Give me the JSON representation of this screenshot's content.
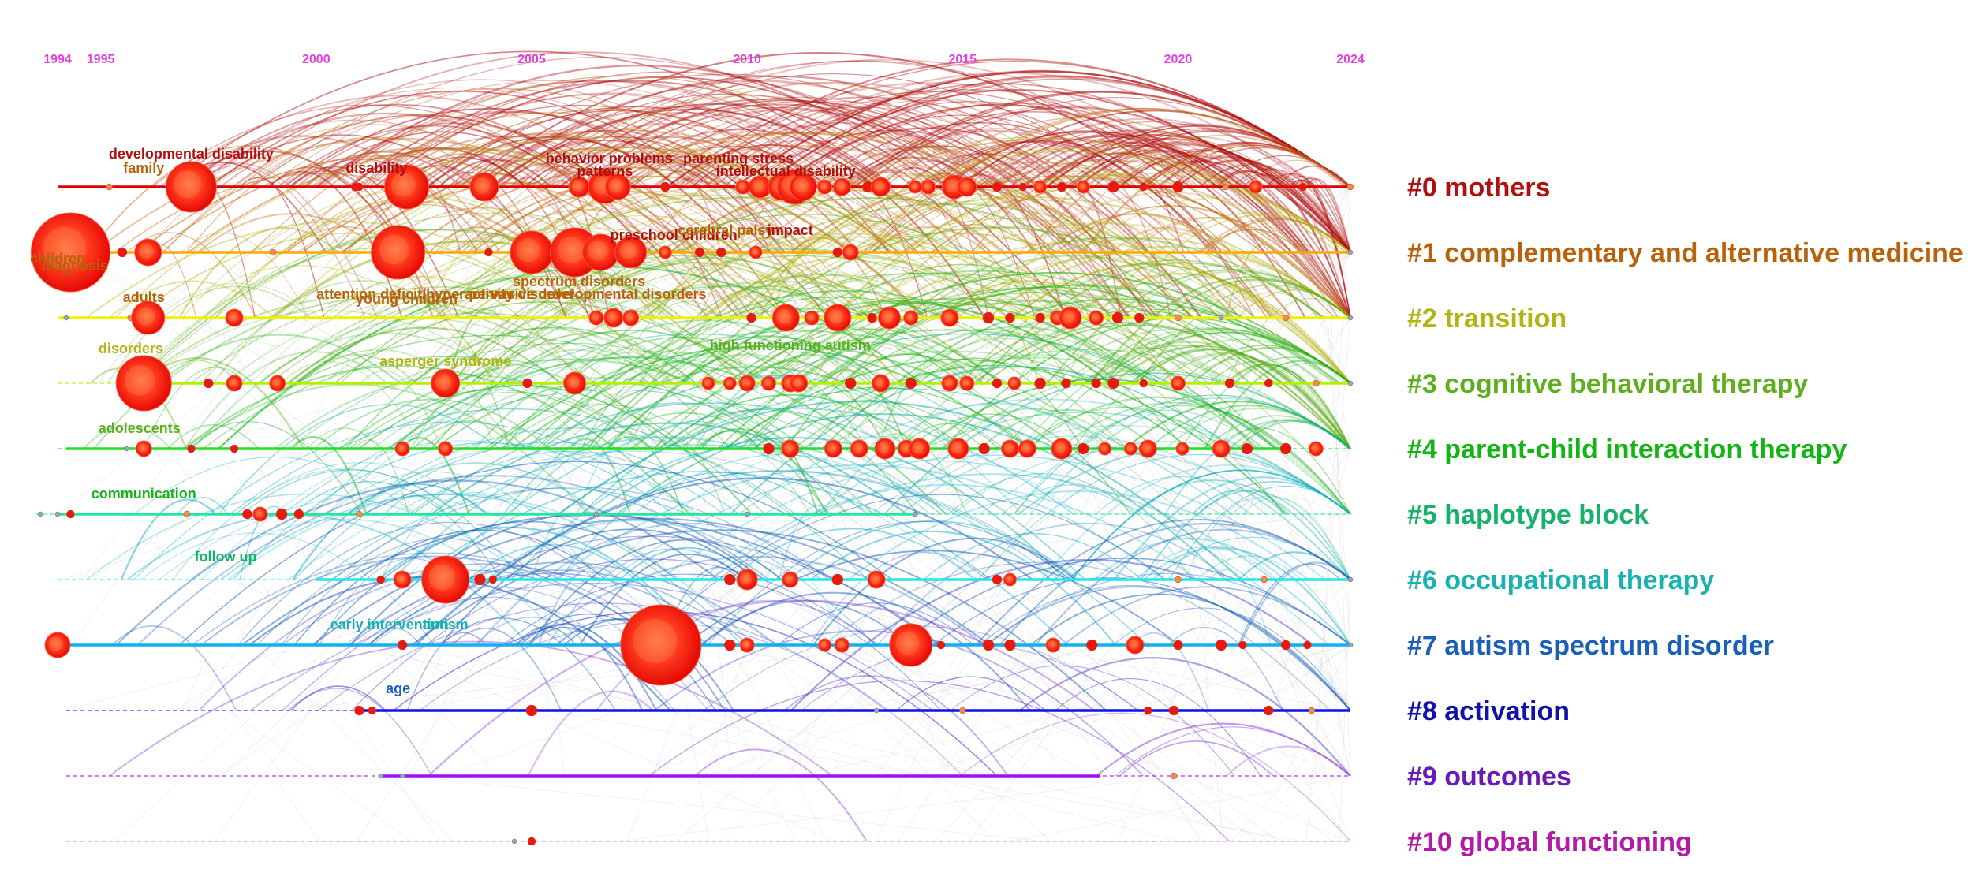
{
  "timeline": {
    "years": [
      "1994",
      "1995",
      "2000",
      "2005",
      "2010",
      "2015",
      "2020",
      "2024"
    ],
    "year_values": [
      1994,
      1995,
      2000,
      2005,
      2010,
      2015,
      2020,
      2024
    ]
  },
  "clusters": [
    {
      "label": "#0 mothers",
      "color": "#b01010"
    },
    {
      "label": "#1 complementary and alternative medicine",
      "color": "#b8620c"
    },
    {
      "label": "#2 transition",
      "color": "#b2b412"
    },
    {
      "label": "#3 cognitive behavioral therapy",
      "color": "#5fae1e"
    },
    {
      "label": "#4 parent-child interaction therapy",
      "color": "#14b414"
    },
    {
      "label": "#5 haplotype block",
      "color": "#16b26a"
    },
    {
      "label": "#6 occupational therapy",
      "color": "#18b2b2"
    },
    {
      "label": "#7 autism spectrum disorder",
      "color": "#1a5fb8"
    },
    {
      "label": "#8 activation",
      "color": "#1212a8"
    },
    {
      "label": "#9 outcomes",
      "color": "#6a1ab8"
    },
    {
      "label": "#10 global functioning",
      "color": "#b41aa8"
    }
  ],
  "line_colors": [
    "#e00000",
    "#ffa800",
    "#f0f000",
    "#b4f000",
    "#20e020",
    "#20e8a0",
    "#20e8f0",
    "#10b0f0",
    "#1010f0",
    "#a010f0",
    "#f070e0"
  ],
  "keywords": [
    {
      "text": "developmental disability",
      "year": 1997.1,
      "cluster": 0,
      "color": "#b01010"
    },
    {
      "text": "family",
      "year": 1996.0,
      "cluster": 0,
      "color": "#b8620c"
    },
    {
      "text": "diagnosis",
      "year": 1994.4,
      "cluster": 1,
      "color": "#b8620c"
    },
    {
      "text": "children",
      "year": 1994.0,
      "cluster": 1,
      "color": "#b8620c"
    },
    {
      "text": "disability",
      "year": 2001.4,
      "cluster": 0,
      "color": "#b01010"
    },
    {
      "text": "patterns",
      "year": 2006.7,
      "cluster": 0,
      "color": "#b01010"
    },
    {
      "text": "behavior problems",
      "year": 2006.8,
      "cluster": 0,
      "color": "#b01010"
    },
    {
      "text": "parenting stress",
      "year": 2009.8,
      "cluster": 0,
      "color": "#b01010"
    },
    {
      "text": "intellectual disability",
      "year": 2010.9,
      "cluster": 0,
      "color": "#b01010"
    },
    {
      "text": "preschool children",
      "year": 2008.3,
      "cluster": 1,
      "color": "#b01010"
    },
    {
      "text": "cerebral palsy",
      "year": 2009.5,
      "cluster": 1,
      "color": "#b8620c"
    },
    {
      "text": "impact",
      "year": 2011.0,
      "cluster": 1,
      "color": "#b01010"
    },
    {
      "text": "adults",
      "year": 1996.0,
      "cluster": 2,
      "color": "#b8620c"
    },
    {
      "text": "young children",
      "year": 2002.1,
      "cluster": 2,
      "color": "#b8620c"
    },
    {
      "text": "attention deficit/hyperactivity disorder",
      "year": 2003.0,
      "cluster": 2,
      "color": "#b8620c"
    },
    {
      "text": "spectrum disorders",
      "year": 2006.1,
      "cluster": 2,
      "color": "#b8620c"
    },
    {
      "text": "pervasive developmental disorders",
      "year": 2006.3,
      "cluster": 2,
      "color": "#b8620c"
    },
    {
      "text": "disorders",
      "year": 1995.7,
      "cluster": 3,
      "color": "#b2b412"
    },
    {
      "text": "asperger syndrome",
      "year": 2003.0,
      "cluster": 3,
      "color": "#b2b412"
    },
    {
      "text": "high functioning autism",
      "year": 2011.0,
      "cluster": 3,
      "color": "#5fae1e"
    },
    {
      "text": "adolescents",
      "year": 1995.9,
      "cluster": 4,
      "color": "#5fae1e"
    },
    {
      "text": "communication",
      "year": 1996.0,
      "cluster": 5,
      "color": "#14b414"
    },
    {
      "text": "follow up",
      "year": 1997.9,
      "cluster": 6,
      "color": "#16b26a"
    },
    {
      "text": "early intervention",
      "year": 2001.7,
      "cluster": 7,
      "color": "#18b2b2"
    },
    {
      "text": "autism",
      "year": 2003.0,
      "cluster": 7,
      "color": "#18b2b2"
    },
    {
      "text": "age",
      "year": 2001.9,
      "cluster": 8,
      "color": "#1a5fb8"
    }
  ]
}
